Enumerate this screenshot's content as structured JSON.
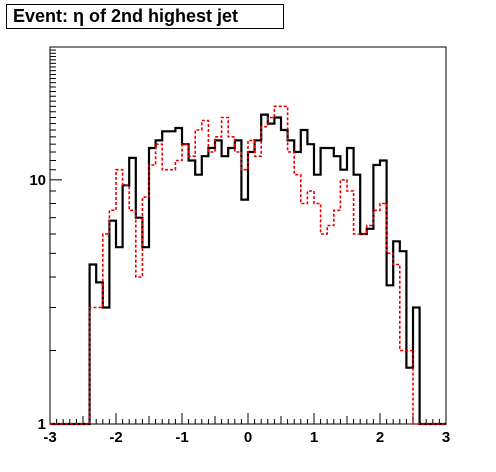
{
  "chart_data": {
    "type": "step-histogram",
    "title": "Event: η of 2nd highest jet",
    "xlabel": "",
    "ylabel": "",
    "xlim": [
      -3,
      3
    ],
    "ylim": [
      1,
      35
    ],
    "log_y": true,
    "x_ticks": [
      -3,
      -2,
      -1,
      0,
      1,
      2,
      3
    ],
    "x_tick_labels": [
      "-3",
      "-2",
      "-1",
      "0",
      "1",
      "2",
      "3"
    ],
    "y_ticks": [
      1,
      10
    ],
    "y_tick_labels": [
      "1",
      "10"
    ],
    "grid": false,
    "legend": "none",
    "bin_edges": [
      -3.0,
      -2.9,
      -2.8,
      -2.7,
      -2.6,
      -2.5,
      -2.4,
      -2.3,
      -2.2,
      -2.1,
      -2.0,
      -1.9,
      -1.8,
      -1.7,
      -1.6,
      -1.5,
      -1.4,
      -1.3,
      -1.2,
      -1.1,
      -1.0,
      -0.9,
      -0.8,
      -0.7,
      -0.6,
      -0.5,
      -0.4,
      -0.3,
      -0.2,
      -0.1,
      0.0,
      0.1,
      0.2,
      0.3,
      0.4,
      0.5,
      0.6,
      0.7,
      0.8,
      0.9,
      1.0,
      1.1,
      1.2,
      1.3,
      1.4,
      1.5,
      1.6,
      1.7,
      1.8,
      1.9,
      2.0,
      2.1,
      2.2,
      2.3,
      2.4,
      2.5,
      2.6,
      2.7,
      2.8,
      2.9,
      3.0
    ],
    "series": [
      {
        "color": "#000000",
        "style": "solid",
        "values": [
          1,
          1,
          1,
          1,
          1,
          1,
          4.5,
          3.8,
          3.0,
          6.8,
          5.3,
          9.5,
          12.3,
          7.0,
          5.3,
          13.5,
          14.5,
          15.8,
          15.8,
          16.3,
          14.0,
          12.0,
          10.5,
          12.5,
          13.5,
          14.5,
          12.5,
          13.5,
          14.5,
          8.3,
          13.0,
          14.5,
          18.5,
          17.0,
          18.0,
          16.0,
          14.5,
          13.0,
          16.0,
          14.0,
          10.5,
          13.5,
          13.5,
          12.5,
          11.0,
          13.5,
          10.5,
          6.0,
          6.3,
          11.5,
          12.0,
          3.7,
          5.6,
          5.1,
          1.7,
          3.0,
          1,
          1,
          1,
          1
        ]
      },
      {
        "color": "#ee0000",
        "style": "dashed",
        "values": [
          1,
          1,
          1,
          1,
          1,
          1,
          3.0,
          3.0,
          6.0,
          7.5,
          11.0,
          9.5,
          7.5,
          4.0,
          8.5,
          11.5,
          14.0,
          11.0,
          11.0,
          12.0,
          14.0,
          12.5,
          16.0,
          17.5,
          13.0,
          15.0,
          18.0,
          15.0,
          13.0,
          11.0,
          14.5,
          12.5,
          16.5,
          18.0,
          20.0,
          20.0,
          13.0,
          10.5,
          8.0,
          9.0,
          8.0,
          6.0,
          6.5,
          7.5,
          10.0,
          9.0,
          6.0,
          6.0,
          6.5,
          7.5,
          8.0,
          5.0,
          4.5,
          2.0,
          2.0,
          1,
          1,
          1,
          1,
          1
        ]
      }
    ]
  }
}
